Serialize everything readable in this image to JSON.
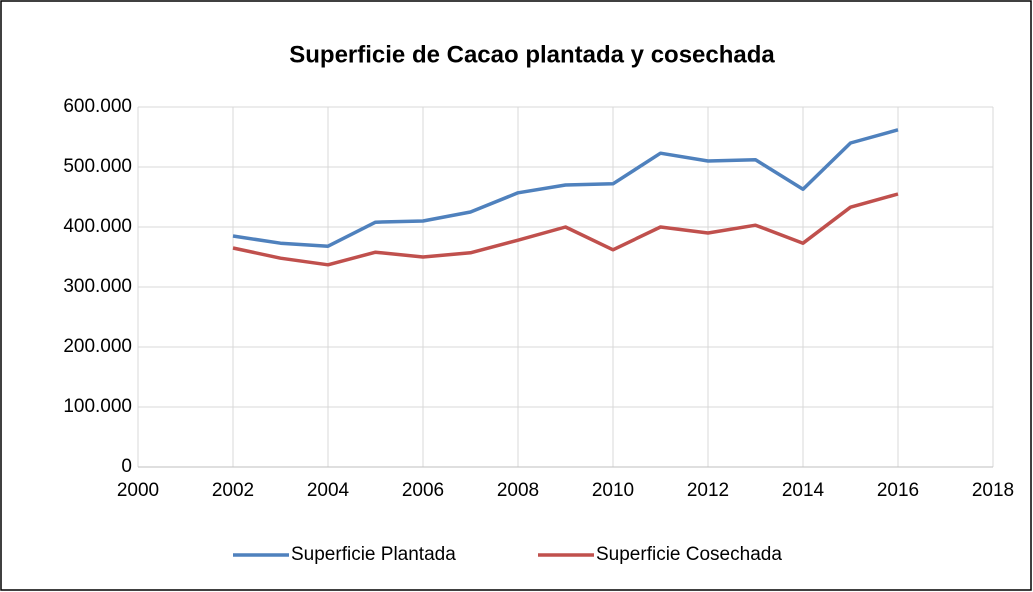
{
  "chart_data": {
    "type": "line",
    "title": "Superficie de Cacao plantada y cosechada",
    "x": [
      2002,
      2003,
      2004,
      2005,
      2006,
      2007,
      2008,
      2009,
      2010,
      2011,
      2012,
      2013,
      2014,
      2015,
      2016
    ],
    "series": [
      {
        "name": "Superficie Plantada",
        "color": "#4f81bd",
        "values": [
          385000,
          373000,
          368000,
          408000,
          410000,
          425000,
          457000,
          470000,
          472000,
          523000,
          510000,
          512000,
          463000,
          540000,
          562000
        ]
      },
      {
        "name": "Superficie Cosechada",
        "color": "#c0504d",
        "values": [
          365000,
          348000,
          337000,
          358000,
          350000,
          357000,
          378000,
          400000,
          362000,
          400000,
          390000,
          403000,
          373000,
          433000,
          455000
        ]
      }
    ],
    "xlim": [
      2000,
      2018
    ],
    "xticks": [
      2000,
      2002,
      2004,
      2006,
      2008,
      2010,
      2012,
      2014,
      2016,
      2018
    ],
    "ylim": [
      0,
      600000
    ],
    "yticks": [
      0,
      {
        "value": 100000,
        "label": "100.000"
      },
      {
        "value": 200000,
        "label": "200.000"
      },
      {
        "value": 300000,
        "label": "300.000"
      },
      {
        "value": 400000,
        "label": "400.000"
      },
      {
        "value": 500000,
        "label": "500.000"
      },
      {
        "value": 600000,
        "label": "600.000"
      }
    ],
    "grid": true,
    "legend": "bottom"
  }
}
